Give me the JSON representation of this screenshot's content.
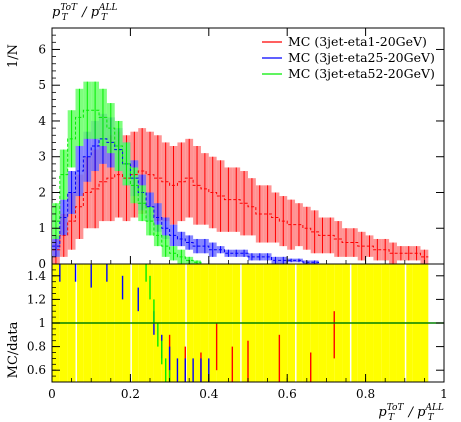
{
  "chart_data": [
    {
      "type": "line",
      "panel": "main",
      "title": "",
      "top_axis_label": "p_T^{ToT}/p_T^{ALL}",
      "ylabel": "1/N",
      "xlim": [
        0,
        1
      ],
      "ylim": [
        0,
        6.6
      ],
      "x_ticks": [
        0,
        0.2,
        0.4,
        0.6,
        0.8,
        1
      ],
      "y_ticks": [
        0,
        1,
        2,
        3,
        4,
        5,
        6
      ],
      "y_tick_labels": [
        "0",
        "1",
        "2",
        "3",
        "4",
        "5",
        "6"
      ],
      "legend_position": "top-right",
      "x": [
        0.01,
        0.03,
        0.05,
        0.07,
        0.09,
        0.11,
        0.13,
        0.15,
        0.17,
        0.19,
        0.21,
        0.23,
        0.25,
        0.27,
        0.29,
        0.31,
        0.33,
        0.35,
        0.37,
        0.39,
        0.41,
        0.43,
        0.45,
        0.47,
        0.49,
        0.51,
        0.53,
        0.55,
        0.57,
        0.59,
        0.61,
        0.63,
        0.65,
        0.67,
        0.69,
        0.71,
        0.73,
        0.75,
        0.77,
        0.79,
        0.81,
        0.83,
        0.85,
        0.87,
        0.89,
        0.91,
        0.93,
        0.95
      ],
      "series": [
        {
          "name": "MC (3jet-eta1-20GeV)",
          "color": "#ff0000",
          "band_color": "#ff8080",
          "values": [
            0.4,
            0.8,
            1.2,
            1.6,
            2.0,
            2.1,
            2.3,
            2.4,
            2.5,
            2.4,
            2.5,
            2.6,
            2.5,
            2.4,
            2.3,
            2.2,
            2.3,
            2.4,
            2.2,
            2.1,
            2.0,
            1.9,
            1.8,
            1.8,
            1.7,
            1.6,
            1.4,
            1.4,
            1.3,
            1.2,
            1.1,
            1.1,
            1.0,
            0.9,
            0.8,
            0.8,
            0.7,
            0.6,
            0.6,
            0.5,
            0.5,
            0.4,
            0.4,
            0.3,
            0.3,
            0.3,
            0.3,
            0.2
          ],
          "errors": [
            0.4,
            0.6,
            0.8,
            0.9,
            1.0,
            1.1,
            1.1,
            1.2,
            1.2,
            1.2,
            1.2,
            1.2,
            1.2,
            1.2,
            1.1,
            1.1,
            1.1,
            1.1,
            1.1,
            1.0,
            1.0,
            1.0,
            0.9,
            0.9,
            0.9,
            0.8,
            0.8,
            0.8,
            0.7,
            0.7,
            0.7,
            0.6,
            0.6,
            0.6,
            0.5,
            0.5,
            0.5,
            0.4,
            0.4,
            0.4,
            0.3,
            0.3,
            0.3,
            0.3,
            0.2,
            0.2,
            0.2,
            0.2
          ]
        },
        {
          "name": "MC (3jet-eta25-20GeV)",
          "color": "#0000ff",
          "band_color": "#7070ff",
          "values": [
            0.5,
            1.3,
            2.0,
            2.6,
            3.0,
            3.3,
            3.5,
            3.4,
            3.2,
            2.8,
            2.4,
            2.0,
            1.6,
            1.3,
            1.0,
            0.8,
            0.7,
            0.6,
            0.5,
            0.5,
            0.4,
            0.4,
            0.3,
            0.3,
            0.3,
            0.2,
            0.2,
            0.2,
            0.1,
            0.1,
            0.1,
            0.1,
            0.05,
            0.05,
            0.0,
            0.0,
            0.0,
            0.0,
            0.0,
            0.0,
            0.0,
            0.0,
            0.0,
            0.0,
            0.0,
            0.0,
            0.0,
            0.0
          ],
          "errors": [
            0.3,
            0.5,
            0.6,
            0.7,
            0.7,
            0.7,
            0.7,
            0.7,
            0.6,
            0.6,
            0.5,
            0.5,
            0.4,
            0.4,
            0.3,
            0.3,
            0.2,
            0.2,
            0.2,
            0.2,
            0.2,
            0.1,
            0.1,
            0.1,
            0.1,
            0.1,
            0.1,
            0.1,
            0.1,
            0.1,
            0.05,
            0.05,
            0.05,
            0.05,
            0,
            0,
            0,
            0,
            0,
            0,
            0,
            0,
            0,
            0,
            0,
            0,
            0,
            0
          ]
        },
        {
          "name": "MC (3jet-eta52-20GeV)",
          "color": "#00ee00",
          "band_color": "#66ff66",
          "values": [
            1.2,
            2.5,
            3.5,
            4.1,
            4.3,
            4.3,
            4.1,
            3.8,
            3.3,
            2.8,
            2.2,
            1.7,
            1.2,
            0.8,
            0.5,
            0.3,
            0.2,
            0.1,
            0.05,
            0.0,
            0.0,
            0.0,
            0.0,
            0.0,
            0.0,
            0.0,
            0.0,
            0.0,
            0.0,
            0.0,
            0.0,
            0.0,
            0.0,
            0.0,
            0.0,
            0.0,
            0.0,
            0.0,
            0.0,
            0.0,
            0.0,
            0.0,
            0.0,
            0.0,
            0.0,
            0.0,
            0.0,
            0.0
          ],
          "errors": [
            0.5,
            0.7,
            0.8,
            0.8,
            0.8,
            0.8,
            0.8,
            0.7,
            0.7,
            0.6,
            0.5,
            0.5,
            0.4,
            0.3,
            0.3,
            0.2,
            0.2,
            0.1,
            0.05,
            0,
            0,
            0,
            0,
            0,
            0,
            0,
            0,
            0,
            0,
            0,
            0,
            0,
            0,
            0,
            0,
            0,
            0,
            0,
            0,
            0,
            0,
            0,
            0,
            0,
            0,
            0,
            0,
            0
          ]
        }
      ]
    },
    {
      "type": "line",
      "panel": "ratio",
      "ylabel": "MC/data",
      "xlabel": "p_T^{ToT}/p_T^{ALL}",
      "xlim": [
        0,
        1
      ],
      "ylim": [
        0.5,
        1.5
      ],
      "x_ticks": [
        0,
        0.2,
        0.4,
        0.6,
        0.8,
        1
      ],
      "x_tick_labels": [
        "0",
        "0.2",
        "0.4",
        "0.6",
        "0.8",
        "1"
      ],
      "y_ticks": [
        0.6,
        0.8,
        1.0,
        1.2,
        1.4
      ],
      "y_tick_labels": [
        "0.6",
        "0.8",
        "1",
        "1.2",
        "1.4"
      ],
      "reference_line": 1,
      "uncertainty_band_color": "#ffff00",
      "band_x": [
        0.01,
        0.03,
        0.05,
        0.07,
        0.09,
        0.11,
        0.13,
        0.15,
        0.17,
        0.19,
        0.21,
        0.23,
        0.25,
        0.27,
        0.29,
        0.31,
        0.33,
        0.35,
        0.37,
        0.39,
        0.41,
        0.43,
        0.45,
        0.47,
        0.49,
        0.51,
        0.53,
        0.55,
        0.57,
        0.59,
        0.61,
        0.63,
        0.65,
        0.67,
        0.69,
        0.71,
        0.73,
        0.75,
        0.77,
        0.79,
        0.81,
        0.83,
        0.85,
        0.87,
        0.89,
        0.91,
        0.93,
        0.95
      ],
      "series": [
        {
          "name": "MC (3jet-eta1-20GeV)",
          "color": "#ff0000",
          "x": [
            0.3,
            0.34,
            0.38,
            0.42,
            0.46,
            0.5,
            0.58,
            0.66,
            0.72
          ],
          "values": [
            0.7,
            0.6,
            0.55,
            0.8,
            0.6,
            0.65,
            0.7,
            0.55,
            0.9
          ],
          "errors": [
            0.2,
            0.2,
            0.2,
            0.2,
            0.2,
            0.2,
            0.2,
            0.2,
            0.2
          ]
        },
        {
          "name": "MC (3jet-eta25-20GeV)",
          "color": "#0000ff",
          "x": [
            0.02,
            0.06,
            0.1,
            0.14,
            0.18,
            0.22,
            0.26,
            0.28,
            0.3,
            0.32,
            0.34,
            0.36,
            0.38,
            0.4
          ],
          "values": [
            1.45,
            1.45,
            1.4,
            1.45,
            1.3,
            1.2,
            1.0,
            0.8,
            0.7,
            0.6,
            0.6,
            0.6,
            0.6,
            0.6
          ],
          "errors": [
            0.1,
            0.1,
            0.1,
            0.1,
            0.1,
            0.1,
            0.1,
            0.1,
            0.1,
            0.1,
            0.1,
            0.1,
            0.1,
            0.1
          ]
        },
        {
          "name": "MC (3jet-eta52-20GeV)",
          "color": "#00ee00",
          "x": [
            0.24,
            0.25,
            0.26,
            0.27,
            0.28,
            0.29,
            0.3
          ],
          "values": [
            1.45,
            1.3,
            1.1,
            0.9,
            0.75,
            0.6,
            0.5
          ],
          "errors": [
            0.1,
            0.1,
            0.1,
            0.1,
            0.1,
            0.1,
            0.1
          ]
        }
      ]
    }
  ]
}
